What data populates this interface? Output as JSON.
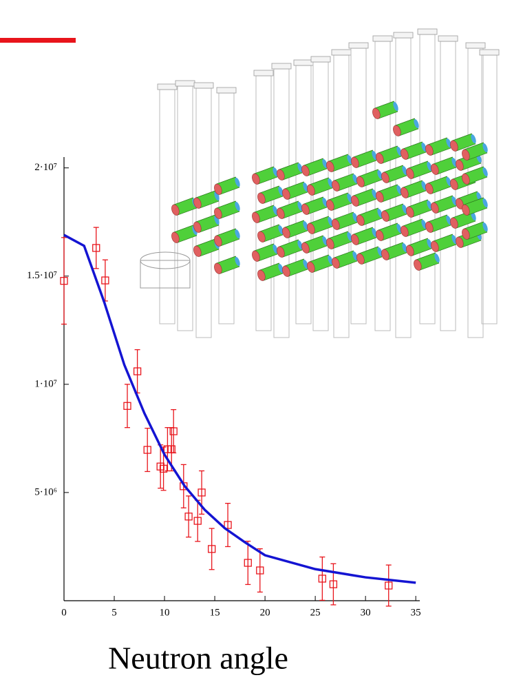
{
  "chart_data": {
    "type": "scatter",
    "x_label": "Neutron angle",
    "xlim": [
      0,
      35.4
    ],
    "ylim": [
      0,
      20500000
    ],
    "xticks": [
      0,
      5,
      10,
      15,
      20,
      25,
      30,
      35
    ],
    "yticks": [
      {
        "value": 5000000,
        "label": "5·10⁶"
      },
      {
        "value": 10000000,
        "label": "1·10⁷"
      },
      {
        "value": 15000000,
        "label": "1.5·10⁷"
      },
      {
        "value": 20000000,
        "label": "2·10⁷"
      }
    ],
    "series": [
      {
        "type": "scatter",
        "color": "#e8141b",
        "x": [
          0,
          3.2,
          4.1,
          6.3,
          7.3,
          8.3,
          9.6,
          9.9,
          10.3,
          10.7,
          10.9,
          11.9,
          12.4,
          13.3,
          13.7,
          14.7,
          16.3,
          18.3,
          19.5,
          25.7,
          26.8,
          32.3
        ],
        "values": [
          14780000,
          16300000,
          14800000,
          9000000,
          10600000,
          6970000,
          6200000,
          6100000,
          7000000,
          7000000,
          7830000,
          5290000,
          3890000,
          3690000,
          5000000,
          2390000,
          3500000,
          1750000,
          1400000,
          1020000,
          760000,
          700000
        ],
        "errors": [
          2000000,
          950000,
          950000,
          1000000,
          1000000,
          1000000,
          1000000,
          1000000,
          1000000,
          1000000,
          1000000,
          1000000,
          950000,
          950000,
          1000000,
          950000,
          1000000,
          1000000,
          1000000,
          1000000,
          950000,
          950000
        ]
      },
      {
        "type": "line",
        "color": "#1414d2",
        "x": [
          0,
          2,
          4,
          6,
          8,
          10,
          12,
          14,
          16,
          18,
          20,
          25,
          30,
          35
        ],
        "values": [
          16900000,
          16400000,
          13800000,
          10900000,
          8660000,
          6750000,
          5300000,
          4200000,
          3350000,
          2700000,
          2100000,
          1460000,
          1080000,
          830000
        ]
      }
    ]
  }
}
